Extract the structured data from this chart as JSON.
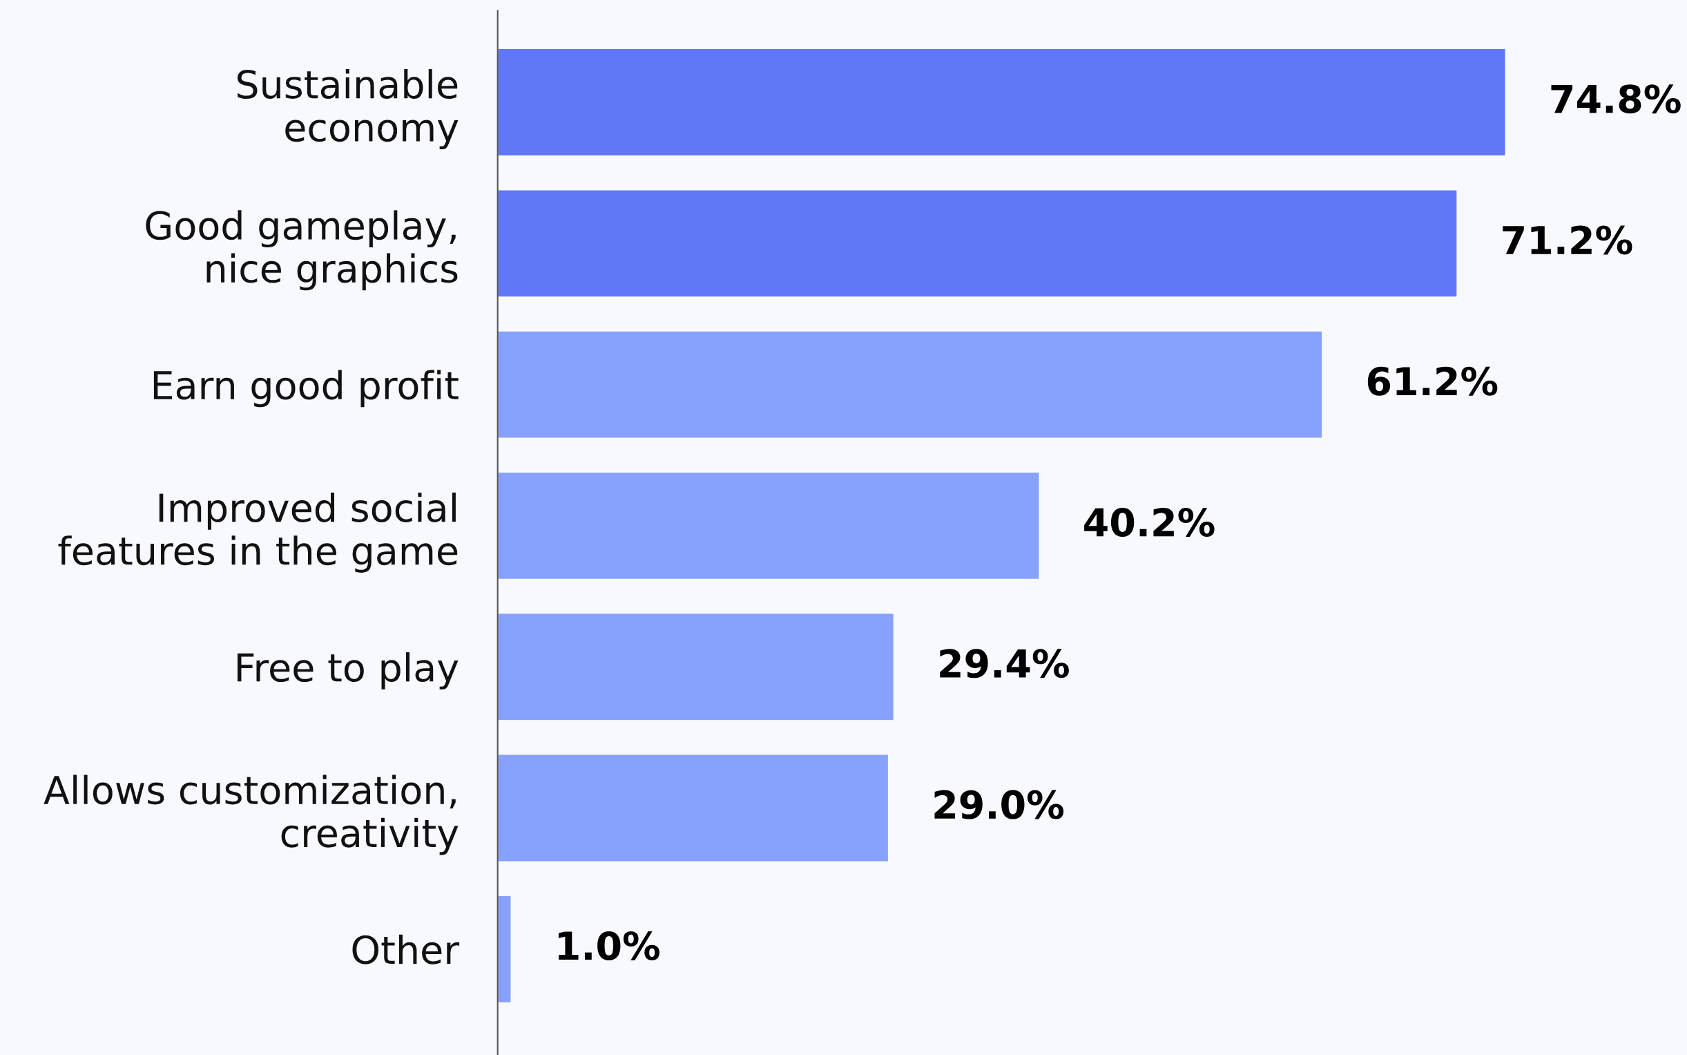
{
  "chart_data": {
    "type": "bar",
    "orientation": "horizontal",
    "categories": [
      "Sustainable\neconomy",
      "Good gameplay,\nnice graphics",
      "Earn good profit",
      "Improved social\nfeatures in the game",
      "Free to play",
      "Allows customization,\ncreativity",
      "Other"
    ],
    "values": [
      74.8,
      71.2,
      61.2,
      40.2,
      29.4,
      29.0,
      1.0
    ],
    "colors": [
      "#6078f8",
      "#6078f8",
      "#87a1fc",
      "#87a1fc",
      "#87a1fc",
      "#87a1fc",
      "#87a1fc"
    ],
    "value_labels": [
      "74.8%",
      "71.2%",
      "61.2%",
      "40.2%",
      "29.4%",
      "29.0%",
      "1.0%"
    ],
    "grid": false,
    "legend": false
  }
}
